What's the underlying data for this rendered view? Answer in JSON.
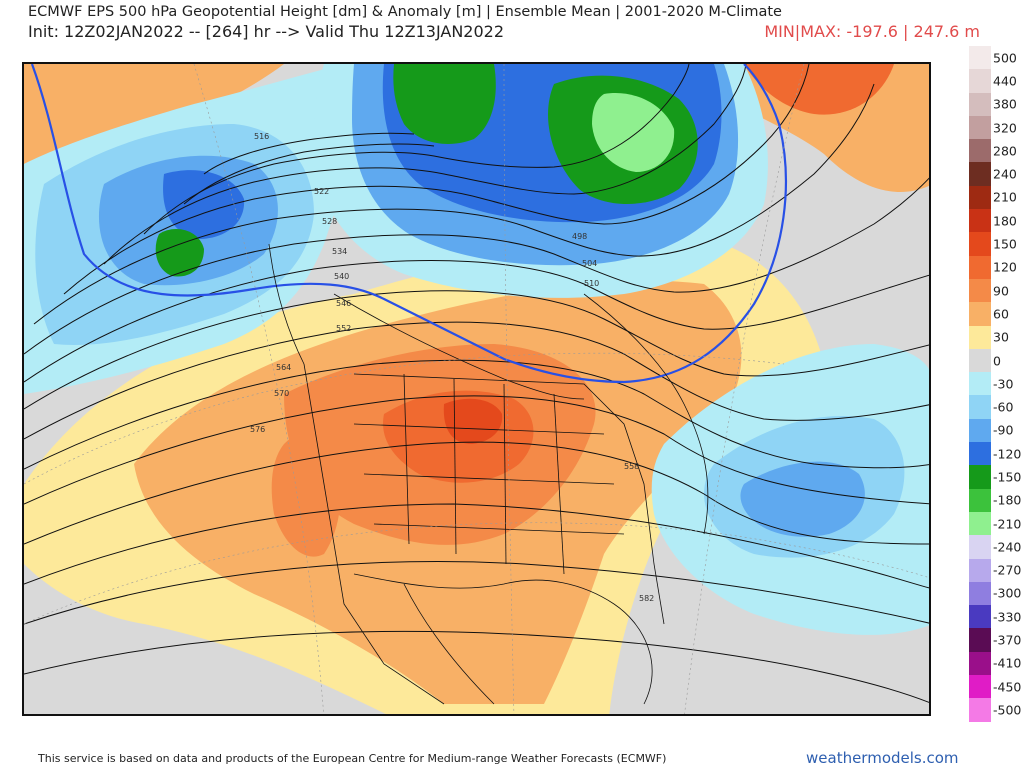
{
  "header": {
    "title": "ECMWF EPS 500 hPa Geopotential Height [dm] & Anomaly [m] | Ensemble Mean | 2001-2020 M-Climate",
    "init_line": "Init: 12Z02JAN2022 -- [264] hr --> Valid Thu 12Z13JAN2022",
    "minmax": "MIN|MAX: -197.6 | 247.6 m"
  },
  "colors": {
    "background_neutral": "#d9d9d9",
    "minmax_text": "#e14b4b",
    "brand_text": "#2e5fb0",
    "highlight_contour": "#2850e6"
  },
  "map": {
    "contour_labels": [
      "516",
      "522",
      "528",
      "534",
      "540",
      "546",
      "552",
      "558",
      "564",
      "570",
      "576",
      "582",
      "504",
      "498",
      "510"
    ]
  },
  "colorbar": [
    {
      "label": "500",
      "color": "#f3eaea"
    },
    {
      "label": "440",
      "color": "#e6d7d7"
    },
    {
      "label": "380",
      "color": "#d4bdbd"
    },
    {
      "label": "320",
      "color": "#c29f9f"
    },
    {
      "label": "280",
      "color": "#9c6b6b"
    },
    {
      "label": "240",
      "color": "#6d2d21"
    },
    {
      "label": "210",
      "color": "#9e2a12"
    },
    {
      "label": "180",
      "color": "#c93215"
    },
    {
      "label": "150",
      "color": "#e4491c"
    },
    {
      "label": "120",
      "color": "#f06a30"
    },
    {
      "label": "90",
      "color": "#f48a48"
    },
    {
      "label": "60",
      "color": "#f8b066"
    },
    {
      "label": "30",
      "color": "#fde99a"
    },
    {
      "label": "0",
      "color": "#d9d9d9"
    },
    {
      "label": "-30",
      "color": "#b3ecf6"
    },
    {
      "label": "-60",
      "color": "#8fd4f5"
    },
    {
      "label": "-90",
      "color": "#5fa9ef"
    },
    {
      "label": "-120",
      "color": "#2d6fe0"
    },
    {
      "label": "-150",
      "color": "#159a1a"
    },
    {
      "label": "-180",
      "color": "#3cc23c"
    },
    {
      "label": "-210",
      "color": "#8ff08f"
    },
    {
      "label": "-240",
      "color": "#d9d4f2"
    },
    {
      "label": "-270",
      "color": "#b7a9ec"
    },
    {
      "label": "-300",
      "color": "#8f7ee0"
    },
    {
      "label": "-330",
      "color": "#4a3ac0"
    },
    {
      "label": "-370",
      "color": "#5a0c54"
    },
    {
      "label": "-410",
      "color": "#9a0f8a"
    },
    {
      "label": "-450",
      "color": "#e01cc6"
    },
    {
      "label": "-500",
      "color": "#f47ae6"
    }
  ],
  "footer": {
    "note": "This service is based on data and products of the European Centre for Medium-range Weather Forecasts (ECMWF)",
    "brand": "weathermodels.com"
  }
}
